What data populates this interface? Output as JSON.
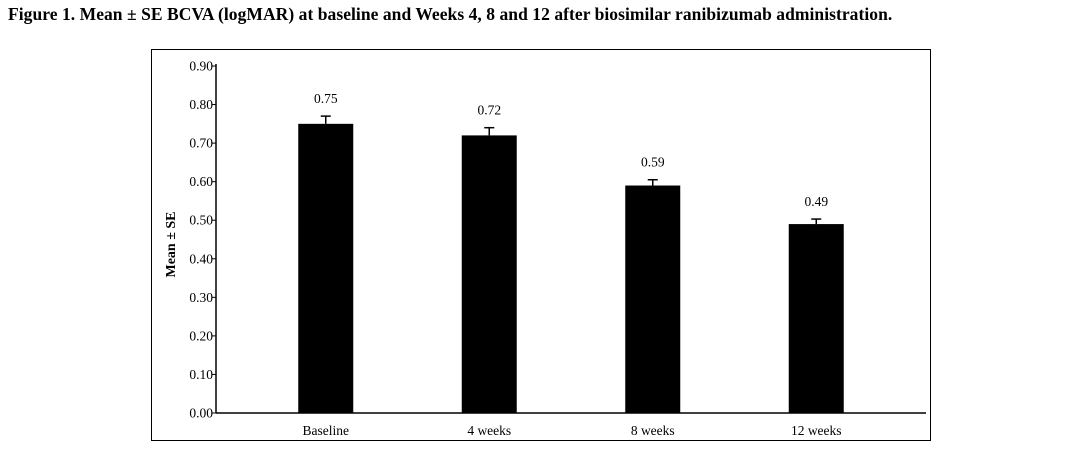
{
  "caption": "Figure 1. Mean ± SE BCVA (logMAR) at baseline and Weeks 4, 8 and 12 after biosimilar ranibizumab administration.",
  "chart_data": {
    "type": "bar",
    "title": "",
    "xlabel": "",
    "ylabel": "Mean ± SE",
    "categories": [
      "Baseline",
      "4 weeks",
      "8 weeks",
      "12 weeks"
    ],
    "values": [
      0.75,
      0.72,
      0.59,
      0.49
    ],
    "value_labels": [
      "0.75",
      "0.72",
      "0.59",
      "0.49"
    ],
    "error": [
      0.02,
      0.02,
      0.015,
      0.013
    ],
    "ylim": [
      0,
      0.9
    ],
    "yticks": [
      0,
      0.1,
      0.2,
      0.3,
      0.4,
      0.5,
      0.6,
      0.7,
      0.8,
      0.9
    ],
    "ytick_labels": [
      "0.00",
      "0.10",
      "0.20",
      "0.30",
      "0.40",
      "0.50",
      "0.60",
      "0.70",
      "0.80",
      "0.90"
    ],
    "bar_color": "#000000",
    "grid": false,
    "legend": "none"
  }
}
